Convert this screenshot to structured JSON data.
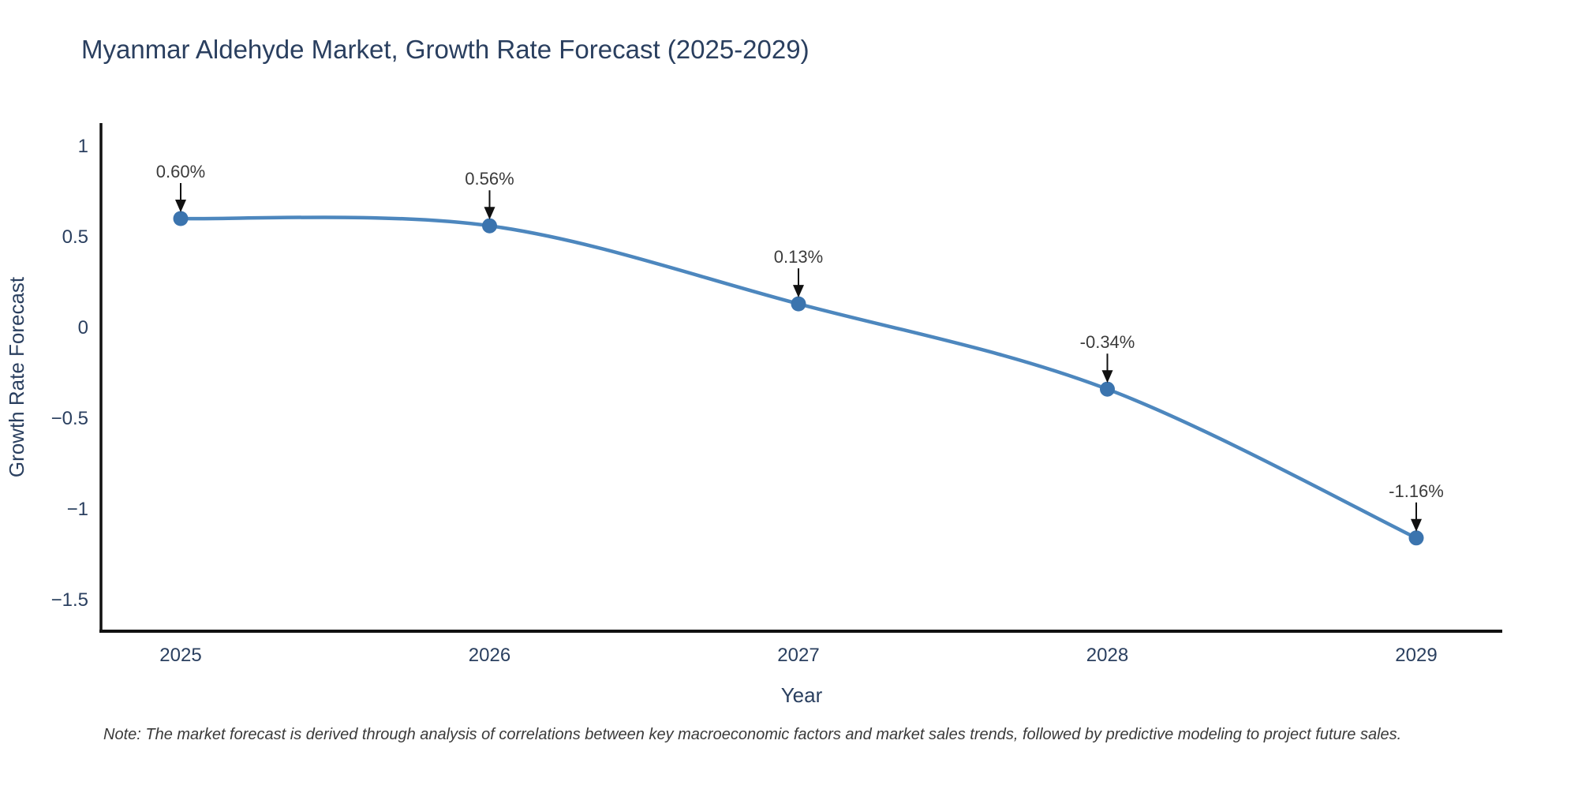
{
  "title": "Myanmar Aldehyde Market, Growth Rate Forecast (2025-2029)",
  "note": "Note: The market forecast is derived through analysis of correlations between key macroeconomic factors and market sales trends, followed by predictive modeling to project future sales.",
  "chart_data": {
    "type": "line",
    "curve": "spline",
    "title": "Myanmar Aldehyde Market, Growth Rate Forecast (2025-2029)",
    "xlabel": "Year",
    "ylabel": "Growth Rate Forecast",
    "x": [
      2025,
      2026,
      2027,
      2028,
      2029
    ],
    "xtick_labels": [
      "2025",
      "2026",
      "2027",
      "2028",
      "2029"
    ],
    "series": [
      {
        "name": "Growth Rate Forecast",
        "values": [
          0.6,
          0.56,
          0.13,
          -0.34,
          -1.16
        ]
      }
    ],
    "point_labels": [
      "0.60%",
      "0.56%",
      "0.13%",
      "-0.34%",
      "-1.16%"
    ],
    "yticks": [
      1,
      0.5,
      0,
      -0.5,
      -1,
      -1.5
    ],
    "ytick_labels": [
      "1",
      "0.5",
      "0",
      "−0.5",
      "−1",
      "−1.5"
    ],
    "ylim": [
      -1.67,
      1.12
    ],
    "grid": false,
    "legend": "none",
    "colors": {
      "line": "#4d87be",
      "marker": "#3b74ae",
      "axis": "#111111",
      "tick_text": "#2a3f5f",
      "annotation_text": "#3b3b3b",
      "annotation_arrow": "#111111"
    }
  }
}
